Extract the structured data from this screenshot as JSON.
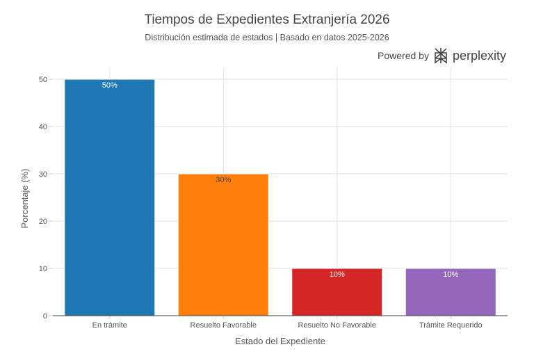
{
  "chart_data": {
    "type": "bar",
    "title": "Tiempos de Expedientes Extranjería 2026",
    "subtitle": "Distribución estimada de estados | Basado en datos 2025-2026",
    "categories": [
      "En trámite",
      "Resuelto Favorable",
      "Resuelto No Favorable",
      "Trámite Requerido"
    ],
    "values": [
      50,
      30,
      10,
      10
    ],
    "data_labels": [
      "50%",
      "30%",
      "10%",
      "10%"
    ],
    "label_colors": [
      "#ffffff",
      "#444444",
      "#ffffff",
      "#ffffff"
    ],
    "colors": [
      "#1f77b4",
      "#ff7f0e",
      "#d62728",
      "#9467bd"
    ],
    "xlabel": "Estado del Expediente",
    "ylabel": "Porcentaje (%)",
    "ylim": [
      0,
      52
    ],
    "yticks": [
      0,
      10,
      20,
      30,
      40,
      50
    ],
    "grid": true,
    "legend": "none"
  },
  "branding": {
    "powered": "Powered by",
    "name": "perplexity"
  }
}
